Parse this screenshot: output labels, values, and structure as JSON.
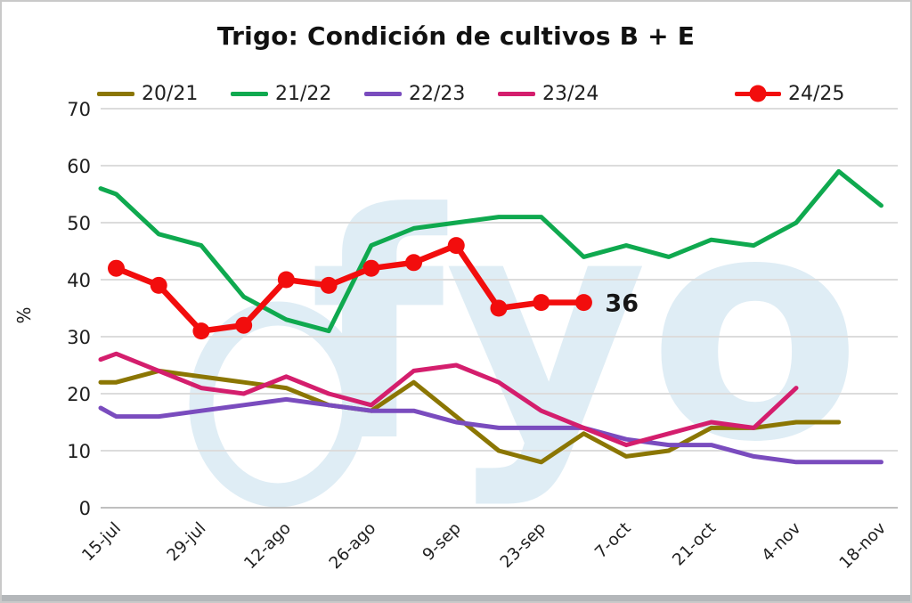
{
  "chart_data": {
    "type": "line",
    "title": "Trigo: Condición de cultivos B + E",
    "ylabel": "%",
    "ylim": [
      0,
      70
    ],
    "yticks": [
      0,
      10,
      20,
      30,
      40,
      50,
      60,
      70
    ],
    "grid": "horizontal",
    "legend_position": "top",
    "x": [
      "15-jul",
      "22-jul",
      "29-jul",
      "5-ago",
      "12-ago",
      "19-ago",
      "26-ago",
      "2-sep",
      "9-sep",
      "16-sep",
      "23-sep",
      "30-sep",
      "7-oct",
      "14-oct",
      "21-oct",
      "28-oct",
      "4-nov",
      "11-nov",
      "18-nov"
    ],
    "xticks_visible": [
      "15-jul",
      "29-jul",
      "12-ago",
      "26-ago",
      "9-sep",
      "23-sep",
      "7-oct",
      "21-oct",
      "4-nov",
      "18-nov"
    ],
    "series": [
      {
        "name": "20/21",
        "color": "#8b7603",
        "edge_value": 22,
        "values": [
          22,
          24,
          23,
          22,
          21,
          18,
          17,
          22,
          16,
          10,
          8,
          13,
          9,
          10,
          14,
          14,
          15,
          15
        ]
      },
      {
        "name": "21/22",
        "color": "#0fa94f",
        "edge_value": 56,
        "values": [
          55,
          48,
          46,
          37,
          33,
          31,
          46,
          49,
          50,
          51,
          51,
          44,
          46,
          44,
          47,
          46,
          50,
          59,
          53
        ]
      },
      {
        "name": "22/23",
        "color": "#7a4cbe",
        "edge_value": 17.5,
        "values": [
          16,
          16,
          17,
          18,
          19,
          18,
          17,
          17,
          15,
          14,
          14,
          14,
          12,
          11,
          11,
          9,
          8,
          8,
          8
        ]
      },
      {
        "name": "23/24",
        "color": "#d41e6d",
        "edge_value": 26,
        "values": [
          27,
          24,
          21,
          20,
          23,
          20,
          18,
          24,
          25,
          22,
          17,
          14,
          11,
          13,
          15,
          14,
          21
        ]
      },
      {
        "name": "24/25",
        "color": "#f20d0d",
        "marker": true,
        "values": [
          42,
          39,
          31,
          32,
          40,
          39,
          42,
          43,
          46,
          35,
          36,
          36
        ]
      }
    ],
    "annotation": {
      "text": "36",
      "x": "30-sep",
      "y": 36
    },
    "watermark": {
      "text": "fyo",
      "color": "#dfedf5"
    },
    "colors": {
      "gridline": "#dcdcdc",
      "axis_line": "#bfbfbf",
      "tick_label": "#1f1f1f",
      "annotation": "#151515"
    }
  }
}
